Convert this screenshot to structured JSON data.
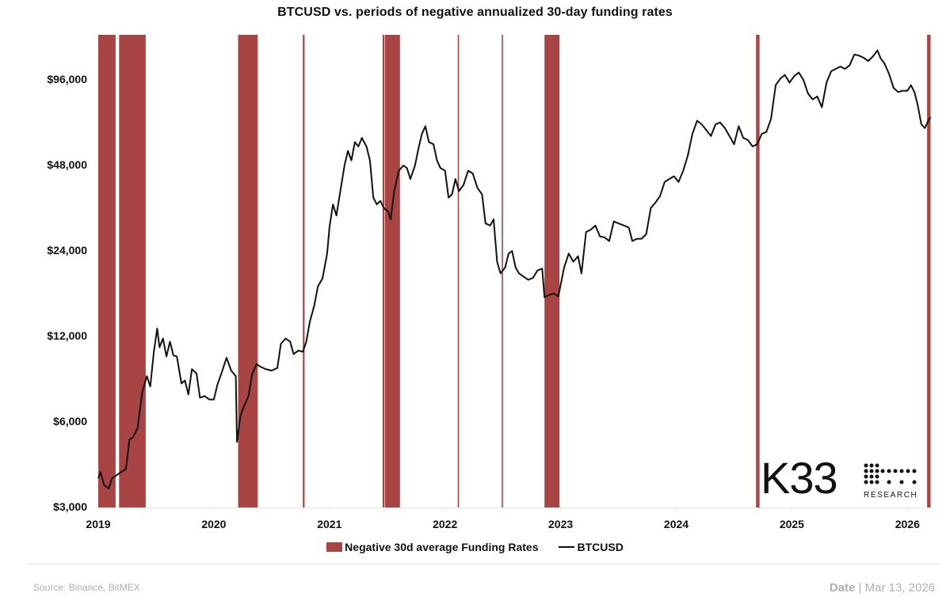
{
  "title": "BTCUSD vs. periods of negative annualized 30-day funding rates",
  "legend": {
    "band_label": "Negative 30d average Funding Rates",
    "line_label": "BTCUSD"
  },
  "footer": {
    "source": "Source:  Binance, BitMEX",
    "date_label": "Date",
    "date_separator": "|",
    "date_value": "Mar 13, 2026"
  },
  "logo": {
    "name": "K33",
    "subtitle": "RESEARCH"
  },
  "colors": {
    "band": "#a84444",
    "line": "#111111",
    "axis": "#e3e3e3",
    "footer_text": "#b0b0b0"
  },
  "chart_data": {
    "type": "line",
    "title": "BTCUSD vs. periods of negative annualized 30-day funding rates",
    "xlabel": "",
    "ylabel": "",
    "y_scale": "log",
    "ylim": [
      3000,
      130000
    ],
    "xlim": [
      2019.0,
      2026.2
    ],
    "y_ticks": [
      {
        "value": 96000,
        "label": "$96,000"
      },
      {
        "value": 48000,
        "label": "$48,000"
      },
      {
        "value": 24000,
        "label": "$24,000"
      },
      {
        "value": 12000,
        "label": "$12,000"
      },
      {
        "value": 6000,
        "label": "$6,000"
      },
      {
        "value": 3000,
        "label": "$3,000"
      }
    ],
    "x_ticks": [
      {
        "value": 2019,
        "label": "2019"
      },
      {
        "value": 2020,
        "label": "2020"
      },
      {
        "value": 2021,
        "label": "2021"
      },
      {
        "value": 2022,
        "label": "2022"
      },
      {
        "value": 2023,
        "label": "2023"
      },
      {
        "value": 2024,
        "label": "2024"
      },
      {
        "value": 2025,
        "label": "2025"
      },
      {
        "value": 2026,
        "label": "2026"
      }
    ],
    "grid": false,
    "legend_position": "bottom",
    "shaded_periods": {
      "name": "Negative 30d average Funding Rates",
      "ranges": [
        [
          2019.0,
          2019.15
        ],
        [
          2019.18,
          2019.41
        ],
        [
          2020.21,
          2020.38
        ],
        [
          2020.77,
          2020.785
        ],
        [
          2021.46,
          2021.475
        ],
        [
          2021.48,
          2021.61
        ],
        [
          2022.11,
          2022.12
        ],
        [
          2022.49,
          2022.5
        ],
        [
          2022.86,
          2022.99
        ],
        [
          2024.69,
          2024.72
        ],
        [
          2026.17,
          2026.2
        ]
      ]
    },
    "series": [
      {
        "name": "BTCUSD",
        "points": [
          [
            2019.0,
            3800
          ],
          [
            2019.02,
            4000
          ],
          [
            2019.05,
            3600
          ],
          [
            2019.09,
            3500
          ],
          [
            2019.12,
            3800
          ],
          [
            2019.16,
            3900
          ],
          [
            2019.2,
            4000
          ],
          [
            2019.24,
            4100
          ],
          [
            2019.27,
            5200
          ],
          [
            2019.3,
            5300
          ],
          [
            2019.34,
            5700
          ],
          [
            2019.38,
            7600
          ],
          [
            2019.42,
            8700
          ],
          [
            2019.45,
            8000
          ],
          [
            2019.48,
            10500
          ],
          [
            2019.51,
            12800
          ],
          [
            2019.53,
            11000
          ],
          [
            2019.56,
            11800
          ],
          [
            2019.59,
            10200
          ],
          [
            2019.62,
            11500
          ],
          [
            2019.65,
            10300
          ],
          [
            2019.68,
            10200
          ],
          [
            2019.72,
            8200
          ],
          [
            2019.75,
            8400
          ],
          [
            2019.78,
            7500
          ],
          [
            2019.81,
            9200
          ],
          [
            2019.85,
            8900
          ],
          [
            2019.88,
            7300
          ],
          [
            2019.92,
            7400
          ],
          [
            2019.96,
            7200
          ],
          [
            2020.0,
            7200
          ],
          [
            2020.03,
            8100
          ],
          [
            2020.07,
            9000
          ],
          [
            2020.11,
            10100
          ],
          [
            2020.15,
            9100
          ],
          [
            2020.19,
            8700
          ],
          [
            2020.2,
            5100
          ],
          [
            2020.23,
            6300
          ],
          [
            2020.26,
            6800
          ],
          [
            2020.3,
            7400
          ],
          [
            2020.33,
            8800
          ],
          [
            2020.37,
            9600
          ],
          [
            2020.4,
            9400
          ],
          [
            2020.45,
            9200
          ],
          [
            2020.5,
            9100
          ],
          [
            2020.55,
            9300
          ],
          [
            2020.58,
            11300
          ],
          [
            2020.62,
            11800
          ],
          [
            2020.66,
            11500
          ],
          [
            2020.69,
            10400
          ],
          [
            2020.73,
            10700
          ],
          [
            2020.77,
            10600
          ],
          [
            2020.8,
            11500
          ],
          [
            2020.83,
            13500
          ],
          [
            2020.87,
            15500
          ],
          [
            2020.9,
            18000
          ],
          [
            2020.94,
            19200
          ],
          [
            2020.98,
            23500
          ],
          [
            2021.0,
            29000
          ],
          [
            2021.03,
            35000
          ],
          [
            2021.06,
            32000
          ],
          [
            2021.09,
            38000
          ],
          [
            2021.13,
            48000
          ],
          [
            2021.16,
            54000
          ],
          [
            2021.19,
            50000
          ],
          [
            2021.22,
            58000
          ],
          [
            2021.25,
            56000
          ],
          [
            2021.28,
            60000
          ],
          [
            2021.32,
            56000
          ],
          [
            2021.35,
            50000
          ],
          [
            2021.38,
            37000
          ],
          [
            2021.41,
            35000
          ],
          [
            2021.44,
            36000
          ],
          [
            2021.47,
            34000
          ],
          [
            2021.51,
            33000
          ],
          [
            2021.53,
            31000
          ],
          [
            2021.56,
            39000
          ],
          [
            2021.6,
            46000
          ],
          [
            2021.64,
            48000
          ],
          [
            2021.67,
            47000
          ],
          [
            2021.7,
            43000
          ],
          [
            2021.74,
            48000
          ],
          [
            2021.77,
            55000
          ],
          [
            2021.8,
            62000
          ],
          [
            2021.83,
            66000
          ],
          [
            2021.86,
            58000
          ],
          [
            2021.9,
            57000
          ],
          [
            2021.93,
            50000
          ],
          [
            2021.96,
            47000
          ],
          [
            2022.0,
            46000
          ],
          [
            2022.03,
            37000
          ],
          [
            2022.06,
            38000
          ],
          [
            2022.09,
            43000
          ],
          [
            2022.12,
            39000
          ],
          [
            2022.16,
            41000
          ],
          [
            2022.2,
            46000
          ],
          [
            2022.24,
            45000
          ],
          [
            2022.28,
            40000
          ],
          [
            2022.32,
            38000
          ],
          [
            2022.35,
            30000
          ],
          [
            2022.39,
            29500
          ],
          [
            2022.42,
            31000
          ],
          [
            2022.45,
            22000
          ],
          [
            2022.48,
            20000
          ],
          [
            2022.52,
            21000
          ],
          [
            2022.55,
            23500
          ],
          [
            2022.58,
            24000
          ],
          [
            2022.61,
            21000
          ],
          [
            2022.64,
            20000
          ],
          [
            2022.68,
            19500
          ],
          [
            2022.72,
            19000
          ],
          [
            2022.76,
            19300
          ],
          [
            2022.8,
            20500
          ],
          [
            2022.84,
            20800
          ],
          [
            2022.86,
            16500
          ],
          [
            2022.9,
            16800
          ],
          [
            2022.94,
            17000
          ],
          [
            2022.98,
            16600
          ],
          [
            2023.03,
            21000
          ],
          [
            2023.07,
            23500
          ],
          [
            2023.11,
            22000
          ],
          [
            2023.15,
            23000
          ],
          [
            2023.18,
            20000
          ],
          [
            2023.22,
            28000
          ],
          [
            2023.26,
            28500
          ],
          [
            2023.3,
            29500
          ],
          [
            2023.34,
            27000
          ],
          [
            2023.38,
            26800
          ],
          [
            2023.42,
            26000
          ],
          [
            2023.46,
            30500
          ],
          [
            2023.5,
            30000
          ],
          [
            2023.55,
            29500
          ],
          [
            2023.59,
            29000
          ],
          [
            2023.62,
            26000
          ],
          [
            2023.66,
            26500
          ],
          [
            2023.7,
            26500
          ],
          [
            2023.74,
            27500
          ],
          [
            2023.78,
            34000
          ],
          [
            2023.82,
            35500
          ],
          [
            2023.86,
            37500
          ],
          [
            2023.9,
            42000
          ],
          [
            2023.94,
            43000
          ],
          [
            2023.98,
            44000
          ],
          [
            2024.02,
            42000
          ],
          [
            2024.06,
            46000
          ],
          [
            2024.1,
            52000
          ],
          [
            2024.14,
            62000
          ],
          [
            2024.18,
            69000
          ],
          [
            2024.22,
            67000
          ],
          [
            2024.26,
            64000
          ],
          [
            2024.3,
            61000
          ],
          [
            2024.34,
            67000
          ],
          [
            2024.38,
            68000
          ],
          [
            2024.42,
            65000
          ],
          [
            2024.46,
            61000
          ],
          [
            2024.5,
            57000
          ],
          [
            2024.54,
            66000
          ],
          [
            2024.58,
            60000
          ],
          [
            2024.62,
            59000
          ],
          [
            2024.66,
            56000
          ],
          [
            2024.7,
            57000
          ],
          [
            2024.74,
            62000
          ],
          [
            2024.78,
            63000
          ],
          [
            2024.82,
            70000
          ],
          [
            2024.86,
            92000
          ],
          [
            2024.9,
            97000
          ],
          [
            2024.94,
            100000
          ],
          [
            2024.98,
            94000
          ],
          [
            2025.02,
            99000
          ],
          [
            2025.06,
            102000
          ],
          [
            2025.1,
            96000
          ],
          [
            2025.14,
            86000
          ],
          [
            2025.18,
            82000
          ],
          [
            2025.22,
            84000
          ],
          [
            2025.26,
            77000
          ],
          [
            2025.3,
            94000
          ],
          [
            2025.34,
            103000
          ],
          [
            2025.38,
            105000
          ],
          [
            2025.42,
            107000
          ],
          [
            2025.46,
            105000
          ],
          [
            2025.5,
            108000
          ],
          [
            2025.54,
            118000
          ],
          [
            2025.58,
            117000
          ],
          [
            2025.62,
            115000
          ],
          [
            2025.66,
            112000
          ],
          [
            2025.7,
            116000
          ],
          [
            2025.74,
            122000
          ],
          [
            2025.77,
            114000
          ],
          [
            2025.8,
            110000
          ],
          [
            2025.84,
            101000
          ],
          [
            2025.88,
            90000
          ],
          [
            2025.92,
            87000
          ],
          [
            2025.96,
            88000
          ],
          [
            2026.0,
            88000
          ],
          [
            2026.03,
            92000
          ],
          [
            2026.06,
            87000
          ],
          [
            2026.09,
            78000
          ],
          [
            2026.12,
            67000
          ],
          [
            2026.15,
            65000
          ],
          [
            2026.18,
            69000
          ],
          [
            2026.2,
            71000
          ]
        ]
      }
    ]
  }
}
